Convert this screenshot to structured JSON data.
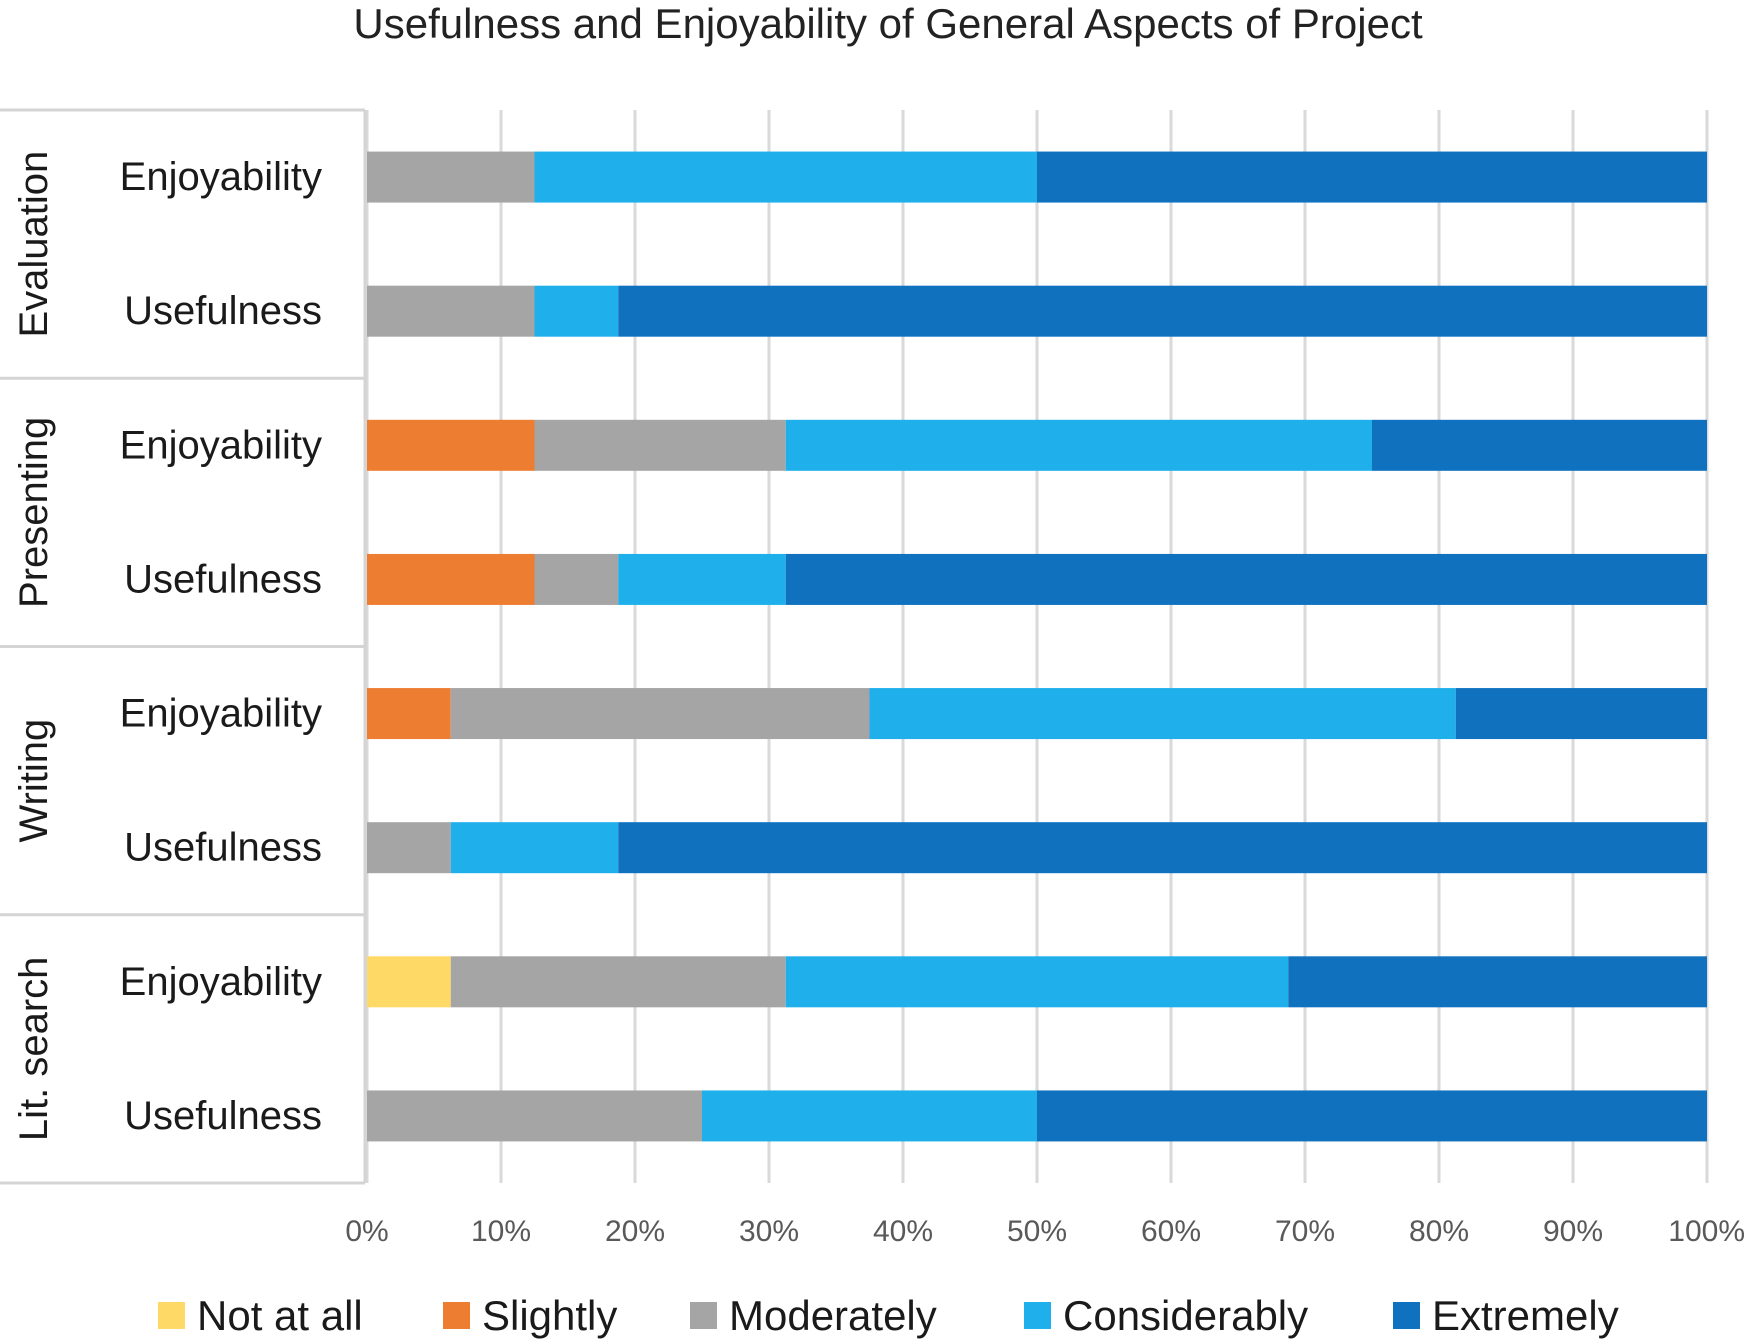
{
  "chart_data": {
    "type": "bar",
    "orientation": "horizontal",
    "stacked": true,
    "title": "Usefulness and Enjoyability of General Aspects of Project",
    "groups": [
      {
        "name": "Evaluation",
        "rows": [
          "Enjoyability",
          "Usefulness"
        ]
      },
      {
        "name": "Presenting",
        "rows": [
          "Enjoyability",
          "Usefulness"
        ]
      },
      {
        "name": "Writing",
        "rows": [
          "Enjoyability",
          "Usefulness"
        ]
      },
      {
        "name": "Lit. search",
        "rows": [
          "Enjoyability",
          "Usefulness"
        ]
      }
    ],
    "categories": [
      "Evaluation - Enjoyability",
      "Evaluation - Usefulness",
      "Presenting - Enjoyability",
      "Presenting - Usefulness",
      "Writing - Enjoyability",
      "Writing - Usefulness",
      "Lit. search - Enjoyability",
      "Lit. search - Usefulness"
    ],
    "series": [
      {
        "name": "Not at all",
        "color": "#FFD966",
        "values": [
          0,
          0,
          0,
          0,
          0,
          0,
          6.25,
          0
        ]
      },
      {
        "name": "Slightly",
        "color": "#ED7D31",
        "values": [
          0,
          0,
          12.5,
          12.5,
          6.25,
          0,
          0,
          0
        ]
      },
      {
        "name": "Moderately",
        "color": "#A5A5A5",
        "values": [
          12.5,
          12.5,
          18.75,
          6.25,
          31.25,
          6.25,
          25,
          25
        ]
      },
      {
        "name": "Considerably",
        "color": "#1FB0EC",
        "values": [
          37.5,
          6.25,
          43.75,
          12.5,
          43.75,
          12.5,
          37.5,
          25
        ]
      },
      {
        "name": "Extremely",
        "color": "#1071BF",
        "values": [
          50,
          81.25,
          25,
          68.75,
          18.75,
          81.25,
          31.25,
          50
        ]
      }
    ],
    "xlim": [
      0,
      100
    ],
    "xticks": [
      "0%",
      "10%",
      "20%",
      "30%",
      "40%",
      "50%",
      "60%",
      "70%",
      "80%",
      "90%",
      "100%"
    ],
    "grid": true,
    "legend_position": "bottom"
  }
}
